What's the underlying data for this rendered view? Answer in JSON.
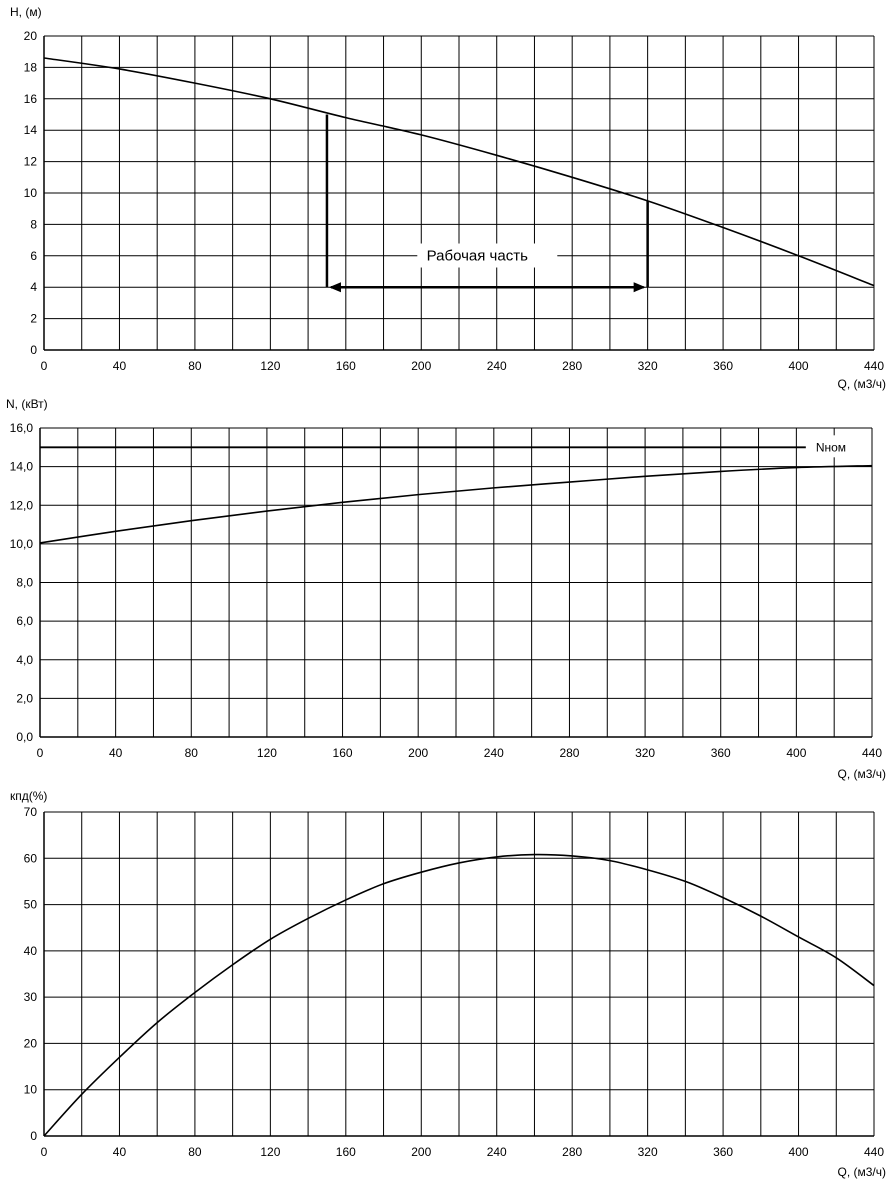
{
  "chart_data": [
    {
      "type": "line",
      "ylabel": "H, (м)",
      "xlabel": "Q, (м3/ч)",
      "xlim": [
        0,
        440
      ],
      "ylim": [
        0,
        20
      ],
      "x_ticks": [
        "0",
        "40",
        "80",
        "120",
        "160",
        "200",
        "240",
        "280",
        "320",
        "360",
        "400",
        "440"
      ],
      "y_ticks": [
        "0",
        "2",
        "4",
        "6",
        "8",
        "10",
        "12",
        "14",
        "16",
        "18",
        "20"
      ],
      "x_grid_step": 20,
      "y_grid_step": 2,
      "grid": true,
      "series": [
        {
          "x": [
            0,
            40,
            80,
            120,
            160,
            200,
            240,
            280,
            320,
            360,
            400,
            440
          ],
          "values": [
            18.6,
            17.9,
            17.0,
            16.0,
            14.8,
            13.7,
            12.4,
            11.0,
            9.5,
            7.8,
            6.0,
            4.1
          ]
        }
      ],
      "working_range": {
        "label": "Рабочая часть",
        "q_start": 150,
        "q_end": 320,
        "h_start": 15.0,
        "h_end": 9.5,
        "h_arrow": 4.0
      }
    },
    {
      "type": "line",
      "ylabel": "N, (кВт)",
      "xlabel": "Q, (м3/ч)",
      "xlim": [
        0,
        440
      ],
      "ylim": [
        0,
        16
      ],
      "x_ticks": [
        "0",
        "40",
        "80",
        "120",
        "160",
        "200",
        "240",
        "280",
        "320",
        "360",
        "400",
        "440"
      ],
      "y_ticks": [
        "0,0",
        "2,0",
        "4,0",
        "6,0",
        "8,0",
        "10,0",
        "12,0",
        "14,0",
        "16,0"
      ],
      "x_grid_step": 20,
      "y_grid_step": 2,
      "grid": true,
      "series": [
        {
          "x": [
            0,
            40,
            80,
            120,
            160,
            200,
            240,
            280,
            320,
            360,
            400,
            440
          ],
          "values": [
            10.05,
            10.65,
            11.2,
            11.7,
            12.15,
            12.55,
            12.9,
            13.2,
            13.5,
            13.75,
            13.95,
            14.05
          ]
        }
      ],
      "reference_line": {
        "label": "Nном",
        "value": 15.0,
        "x_end": 405
      }
    },
    {
      "type": "line",
      "ylabel": "кпд(%)",
      "xlabel": "Q, (м3/ч)",
      "xlim": [
        0,
        440
      ],
      "ylim": [
        0,
        70
      ],
      "x_ticks": [
        "0",
        "40",
        "80",
        "120",
        "160",
        "200",
        "240",
        "280",
        "320",
        "360",
        "400",
        "440"
      ],
      "y_ticks": [
        "0",
        "10",
        "20",
        "30",
        "40",
        "50",
        "60",
        "70"
      ],
      "x_grid_step": 20,
      "y_grid_step": 10,
      "grid": true,
      "series": [
        {
          "x": [
            0,
            20,
            40,
            60,
            80,
            100,
            120,
            140,
            160,
            180,
            200,
            220,
            240,
            260,
            280,
            300,
            320,
            340,
            360,
            380,
            400,
            420,
            440
          ],
          "values": [
            0,
            9,
            17,
            24.5,
            31,
            37,
            42.5,
            47,
            51,
            54.5,
            57,
            59,
            60.3,
            60.8,
            60.5,
            59.5,
            57.5,
            55,
            51.5,
            47.5,
            43,
            38.5,
            32.5
          ]
        }
      ]
    }
  ]
}
